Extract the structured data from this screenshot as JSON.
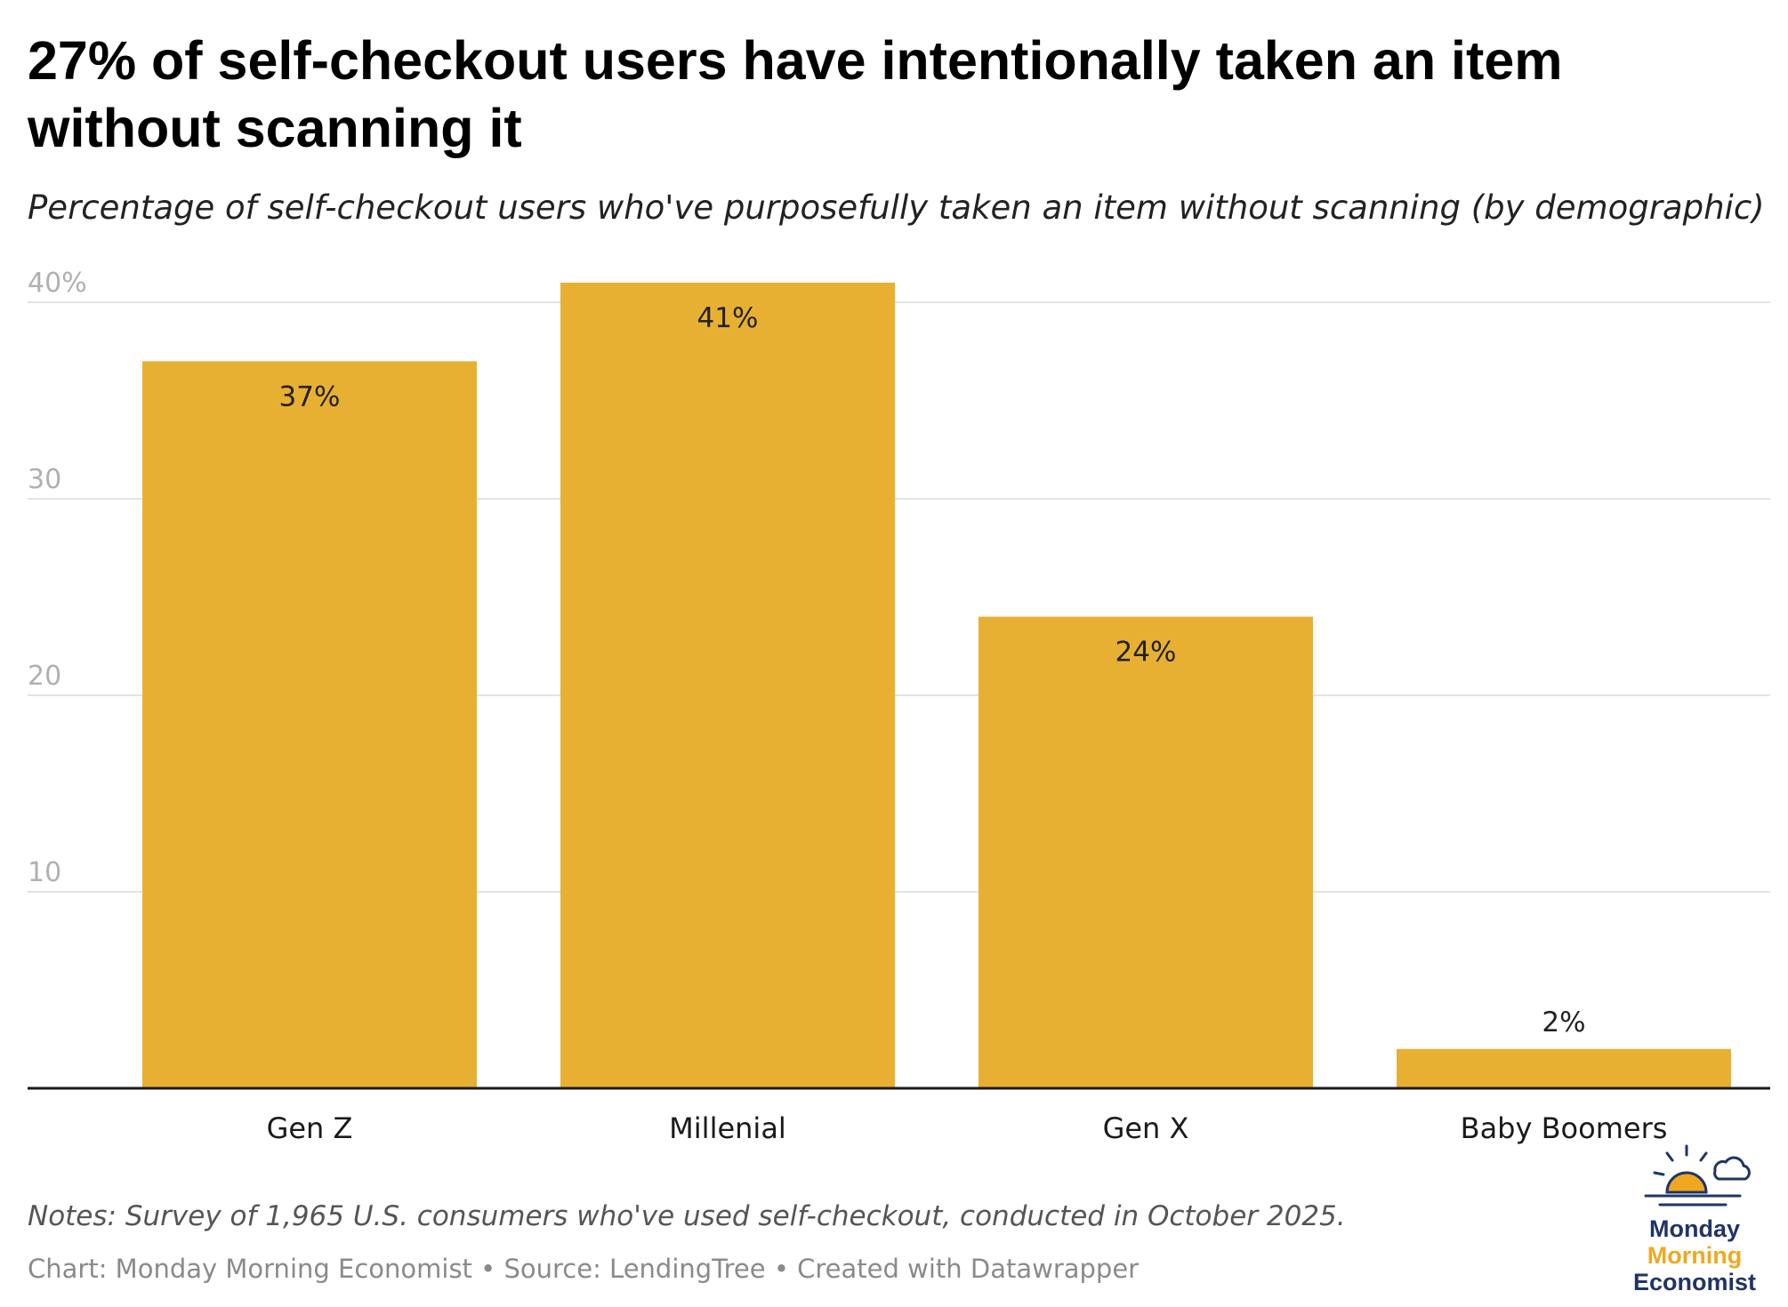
{
  "header": {
    "title": "27% of self-checkout users have intentionally taken an item without scanning it",
    "subtitle": "Percentage of self-checkout users who've purposefully taken an item without scanning (by demographic)"
  },
  "chart_data": {
    "type": "bar",
    "categories": [
      "Gen Z",
      "Millenial",
      "Gen X",
      "Baby Boomers"
    ],
    "values": [
      37,
      41,
      24,
      2
    ],
    "value_labels": [
      "37%",
      "41%",
      "24%",
      "2%"
    ],
    "ylim": [
      0,
      41
    ],
    "yticks": [
      10,
      20,
      30,
      40
    ],
    "ytick_labels": [
      "10",
      "20",
      "30",
      "40%"
    ],
    "grid": true,
    "bar_color": "#e8b033",
    "axis_color": "#1a1a1a",
    "grid_color": "#e3e3e3"
  },
  "footer": {
    "notes": "Notes: Survey of 1,965 U.S. consumers who've used self-checkout, conducted in October 2025.",
    "credits": "Chart: Monday Morning Economist • Source: LendingTree • Created with Datawrapper"
  },
  "logo": {
    "line1": "Monday",
    "line2": "Morning",
    "line3": "Economist",
    "navy": "#1f3566",
    "gold": "#f0a820"
  }
}
